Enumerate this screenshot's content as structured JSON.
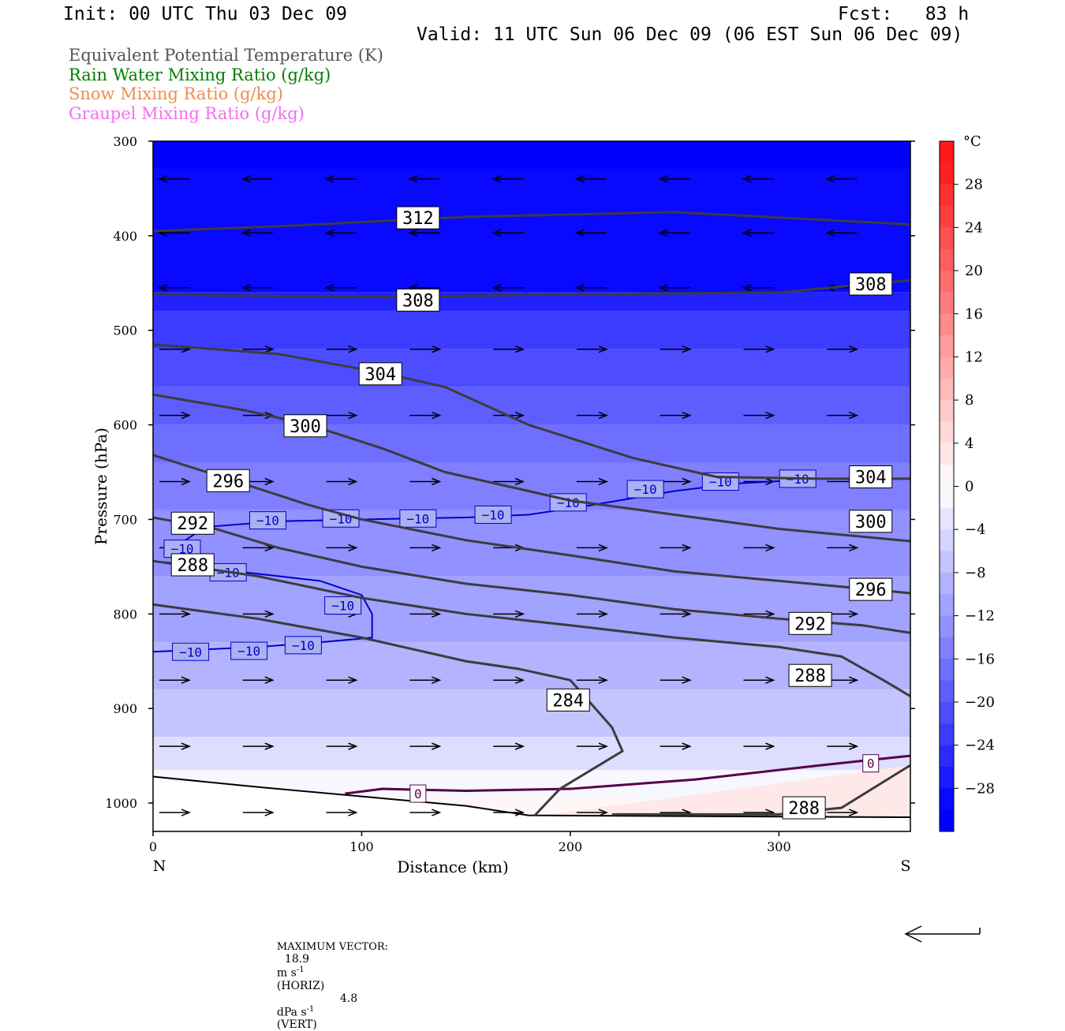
{
  "header": {
    "init": "Init: 00 UTC Thu 03 Dec 09",
    "fcst": "Fcst:   83 h",
    "valid": "Valid: 11 UTC Sun 06 Dec 09 (06 EST Sun 06 Dec 09)",
    "legend": [
      {
        "text": "Equivalent Potential Temperature (K)",
        "color": "#555555"
      },
      {
        "text": "Rain Water Mixing Ratio (g/kg)",
        "color": "#007f00"
      },
      {
        "text": "Snow Mixing Ratio (g/kg)",
        "color": "#f08c50"
      },
      {
        "text": "Graupel Mixing Ratio (g/kg)",
        "color": "#f070f0"
      }
    ]
  },
  "footer": {
    "max_vector_label": "MAXIMUM VECTOR:",
    "horiz_value": "18.9",
    "horiz_unit": "m s",
    "horiz_exp": "-1",
    "horiz_tag": "(HORIZ)",
    "vert_value": "4.8",
    "vert_unit": "dPa s",
    "vert_exp": "-1",
    "vert_tag": "(VERT)"
  },
  "chart_data": {
    "type": "contour-cross-section",
    "xlabel": "Distance (km)",
    "ylabel": "Pressure (hPa)",
    "xlim": [
      0,
      363
    ],
    "ylim": [
      1030,
      300
    ],
    "xticks": [
      0,
      100,
      200,
      300
    ],
    "yticks": [
      300,
      400,
      500,
      600,
      700,
      800,
      900,
      1000
    ],
    "x_end_labels": {
      "left": "N",
      "right": "S"
    },
    "colorbar": {
      "unit": "°C",
      "labels": [
        28,
        24,
        20,
        16,
        12,
        8,
        4,
        0,
        -4,
        -8,
        -12,
        -16,
        -20,
        -24,
        -28
      ],
      "range": [
        -32,
        32
      ],
      "step": 2
    },
    "theta_e_contours": [
      {
        "value": 312,
        "points": [
          [
            0,
            395
          ],
          [
            60,
            390
          ],
          [
            150,
            380
          ],
          [
            250,
            375
          ],
          [
            363,
            388
          ]
        ],
        "labels": [
          [
            127,
            381
          ]
        ]
      },
      {
        "value": 308,
        "points": [
          [
            0,
            462
          ],
          [
            100,
            465
          ],
          [
            200,
            462
          ],
          [
            300,
            460
          ],
          [
            363,
            447
          ]
        ],
        "labels": [
          [
            127,
            468
          ],
          [
            344,
            451
          ]
        ]
      },
      {
        "value": 304,
        "points": [
          [
            0,
            515
          ],
          [
            60,
            525
          ],
          [
            110,
            545
          ],
          [
            140,
            560
          ],
          [
            180,
            600
          ],
          [
            230,
            635
          ],
          [
            270,
            655
          ],
          [
            320,
            657
          ],
          [
            363,
            657
          ]
        ],
        "labels": [
          [
            109,
            546
          ],
          [
            344,
            655
          ]
        ]
      },
      {
        "value": 300,
        "points": [
          [
            0,
            568
          ],
          [
            45,
            585
          ],
          [
            75,
            600
          ],
          [
            110,
            625
          ],
          [
            140,
            650
          ],
          [
            200,
            680
          ],
          [
            250,
            695
          ],
          [
            300,
            710
          ],
          [
            363,
            723
          ]
        ],
        "labels": [
          [
            73,
            601
          ],
          [
            344,
            702
          ]
        ]
      },
      {
        "value": 296,
        "points": [
          [
            0,
            632
          ],
          [
            40,
            660
          ],
          [
            75,
            685
          ],
          [
            100,
            700
          ],
          [
            150,
            722
          ],
          [
            200,
            738
          ],
          [
            250,
            755
          ],
          [
            300,
            765
          ],
          [
            363,
            778
          ]
        ],
        "labels": [
          [
            36,
            659
          ],
          [
            344,
            774
          ]
        ]
      },
      {
        "value": 292,
        "points": [
          [
            0,
            698
          ],
          [
            30,
            710
          ],
          [
            60,
            730
          ],
          [
            100,
            750
          ],
          [
            150,
            768
          ],
          [
            200,
            780
          ],
          [
            250,
            795
          ],
          [
            300,
            805
          ],
          [
            340,
            812
          ],
          [
            363,
            820
          ]
        ],
        "labels": [
          [
            19,
            704
          ],
          [
            315,
            810
          ]
        ]
      },
      {
        "value": 288,
        "points": [
          [
            0,
            744
          ],
          [
            50,
            760
          ],
          [
            100,
            783
          ],
          [
            150,
            800
          ],
          [
            200,
            812
          ],
          [
            250,
            825
          ],
          [
            300,
            835
          ],
          [
            330,
            845
          ],
          [
            350,
            870
          ],
          [
            363,
            887
          ]
        ],
        "labels": [
          [
            19,
            748
          ],
          [
            315,
            865
          ]
        ]
      },
      {
        "value": 284,
        "points": [
          [
            0,
            790
          ],
          [
            50,
            805
          ],
          [
            100,
            825
          ],
          [
            150,
            850
          ],
          [
            175,
            858
          ],
          [
            200,
            870
          ],
          [
            220,
            920
          ],
          [
            225,
            945
          ],
          [
            195,
            985
          ],
          [
            183,
            1013
          ]
        ],
        "labels": [
          [
            199,
            891
          ]
        ]
      },
      {
        "value": 288,
        "points": [
          [
            220,
            1012
          ],
          [
            300,
            1012
          ],
          [
            330,
            1005
          ],
          [
            363,
            960
          ]
        ],
        "labels": [
          [
            312,
            1005
          ]
        ]
      }
    ],
    "temperature_contours": [
      {
        "value": -10,
        "points": [
          [
            10,
            730
          ],
          [
            25,
            708
          ],
          [
            60,
            702
          ],
          [
            100,
            700
          ],
          [
            150,
            698
          ],
          [
            180,
            695
          ],
          [
            210,
            685
          ],
          [
            250,
            670
          ],
          [
            280,
            662
          ],
          [
            320,
            657
          ],
          [
            363,
            657
          ]
        ],
        "labels": [
          [
            55,
            701
          ],
          [
            90,
            699
          ],
          [
            127,
            699
          ],
          [
            163,
            695
          ],
          [
            199,
            682
          ],
          [
            236,
            668
          ],
          [
            272,
            660
          ],
          [
            309,
            657
          ],
          [
            14,
            731
          ]
        ]
      },
      {
        "value": -10,
        "points": [
          [
            5,
            745
          ],
          [
            40,
            755
          ],
          [
            80,
            765
          ],
          [
            100,
            780
          ],
          [
            105,
            800
          ],
          [
            105,
            825
          ],
          [
            80,
            830
          ],
          [
            50,
            835
          ],
          [
            0,
            840
          ]
        ],
        "labels": [
          [
            36,
            756
          ],
          [
            91,
            791
          ],
          [
            72,
            833
          ],
          [
            46,
            839
          ],
          [
            18,
            840
          ]
        ]
      },
      {
        "value": 0,
        "points": [
          [
            92,
            990
          ],
          [
            110,
            985
          ],
          [
            150,
            987
          ],
          [
            200,
            985
          ],
          [
            260,
            975
          ],
          [
            320,
            960
          ],
          [
            363,
            950
          ]
        ],
        "labels": [
          [
            127,
            990
          ],
          [
            344,
            958
          ]
        ]
      }
    ],
    "terrain": [
      [
        0,
        972
      ],
      [
        50,
        983
      ],
      [
        100,
        993
      ],
      [
        150,
        1003
      ],
      [
        180,
        1013
      ],
      [
        363,
        1015
      ]
    ],
    "vectors": [
      {
        "y": 340,
        "dir": -1
      },
      {
        "y": 397,
        "dir": -1
      },
      {
        "y": 455,
        "dir": -1
      },
      {
        "y": 520,
        "dir": 1
      },
      {
        "y": 590,
        "dir": 1
      },
      {
        "y": 660,
        "dir": 1
      },
      {
        "y": 730,
        "dir": 1
      },
      {
        "y": 800,
        "dir": 1
      },
      {
        "y": 870,
        "dir": 1
      },
      {
        "y": 940,
        "dir": 1
      },
      {
        "y": 1010,
        "dir": 1
      }
    ]
  }
}
